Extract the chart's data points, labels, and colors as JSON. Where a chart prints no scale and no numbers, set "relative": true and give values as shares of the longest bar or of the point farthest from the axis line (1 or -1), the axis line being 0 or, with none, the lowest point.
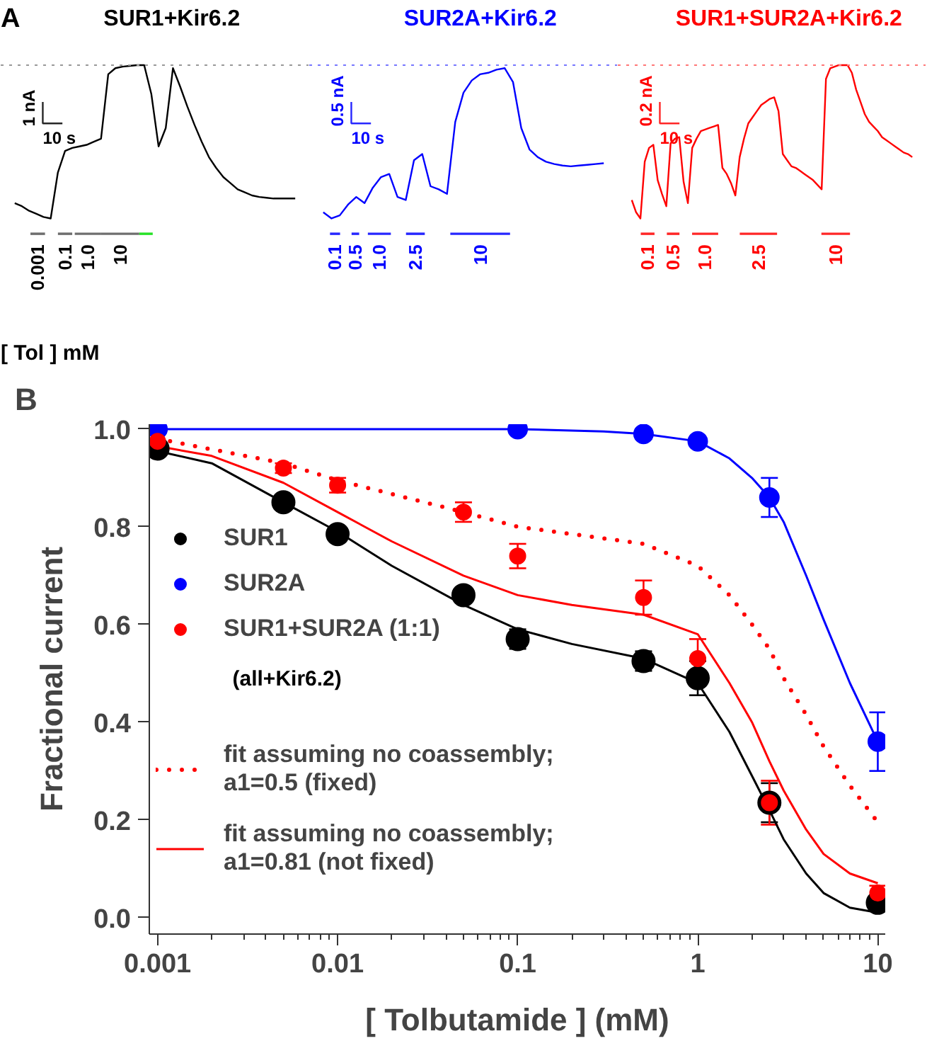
{
  "chart_data": [
    {
      "type": "line",
      "title": "SUR1+Kir6.2",
      "relative": true,
      "tick_labels": false,
      "categories": [
        null,
        null,
        null,
        null,
        null,
        null,
        null,
        null,
        null,
        null,
        null,
        null,
        null,
        null,
        null,
        null,
        null,
        null,
        null,
        null,
        null,
        null,
        null,
        null,
        null,
        null,
        null,
        null,
        null,
        null,
        null,
        null,
        null,
        null,
        null,
        null,
        null,
        null,
        null,
        null
      ],
      "series": [
        {
          "color": "#000000",
          "values": [
            -0.9,
            -0.92,
            -0.95,
            -0.97,
            -0.99,
            -1.0,
            -0.7,
            -0.56,
            -0.54,
            -0.53,
            -0.52,
            -0.5,
            -0.48,
            -0.06,
            -0.02,
            -0.01,
            -0.005,
            0,
            0,
            -0.19,
            -0.53,
            -0.41,
            -0.02,
            -0.14,
            -0.27,
            -0.39,
            -0.5,
            -0.6,
            -0.67,
            -0.73,
            -0.77,
            -0.81,
            -0.83,
            -0.85,
            -0.86,
            -0.865,
            -0.87,
            -0.87,
            -0.87,
            -0.87
          ]
        }
      ],
      "ref_lines": [
        {
          "axis": "y",
          "value": 0,
          "line_style": "dotted",
          "color": "#999999"
        }
      ],
      "annotations": [
        "1 nA",
        "10 s",
        "0.001",
        "0.1",
        "1.0",
        "10",
        "A",
        "[ Tol ] mM"
      ]
    },
    {
      "type": "line",
      "title": "SUR2A+Kir6.2",
      "relative": true,
      "tick_labels": false,
      "categories": [
        null,
        null,
        null,
        null,
        null,
        null,
        null,
        null,
        null,
        null,
        null,
        null,
        null,
        null,
        null,
        null,
        null,
        null,
        null,
        null,
        null,
        null,
        null,
        null,
        null,
        null,
        null,
        null,
        null,
        null,
        null,
        null,
        null,
        null,
        null
      ],
      "series": [
        {
          "color": "#0000ff",
          "values": [
            -0.96,
            -1.0,
            -0.98,
            -0.91,
            -0.86,
            -0.9,
            -0.8,
            -0.73,
            -0.71,
            -0.86,
            -0.88,
            -0.62,
            -0.58,
            -0.79,
            -0.81,
            -0.84,
            -0.37,
            -0.18,
            -0.1,
            -0.06,
            -0.05,
            -0.03,
            -0.02,
            -0.11,
            -0.41,
            -0.55,
            -0.6,
            -0.63,
            -0.645,
            -0.655,
            -0.66,
            -0.655,
            -0.65,
            -0.645,
            -0.64
          ]
        }
      ],
      "ref_lines": [
        {
          "axis": "y",
          "value": 0,
          "line_style": "dotted",
          "color": "#7777ff"
        }
      ],
      "annotations": [
        "0.5 nA",
        "10 s",
        "0.1",
        "0.5",
        "1.0",
        "2.5",
        "10"
      ]
    },
    {
      "type": "line",
      "title": "SUR1+SUR2A+Kir6.2",
      "relative": true,
      "tick_labels": false,
      "categories": [
        null,
        null,
        null,
        null,
        null,
        null,
        null,
        null,
        null,
        null,
        null,
        null,
        null,
        null,
        null,
        null,
        null,
        null,
        null,
        null,
        null,
        null,
        null,
        null,
        null,
        null,
        null,
        null,
        null,
        null,
        null,
        null,
        null,
        null,
        null,
        null,
        null,
        null,
        null,
        null,
        null,
        null,
        null,
        null,
        null,
        null,
        null,
        null,
        null,
        null,
        null,
        null,
        null,
        null,
        null,
        null,
        null,
        null,
        null,
        null,
        null,
        null,
        null,
        null,
        null,
        null
      ],
      "series": [
        {
          "color": "#ff0000",
          "values": [
            -0.88,
            -0.96,
            -1.0,
            -0.63,
            -0.54,
            -0.52,
            -0.75,
            -0.84,
            -0.92,
            -0.51,
            -0.48,
            -0.47,
            -0.76,
            -0.9,
            -0.54,
            -0.48,
            -0.43,
            -0.42,
            -0.41,
            -0.4,
            -0.39,
            -0.67,
            -0.71,
            -0.77,
            -0.85,
            -0.6,
            -0.48,
            -0.38,
            -0.34,
            -0.3,
            -0.26,
            -0.24,
            -0.22,
            -0.21,
            -0.3,
            -0.58,
            -0.62,
            -0.66,
            -0.67,
            -0.69,
            -0.71,
            -0.73,
            -0.75,
            -0.78,
            -0.81,
            -0.09,
            -0.02,
            -0.01,
            0,
            0,
            0,
            -0.05,
            -0.16,
            -0.24,
            -0.32,
            -0.37,
            -0.4,
            -0.43,
            -0.47,
            -0.49,
            -0.51,
            -0.53,
            -0.55,
            -0.57,
            -0.58,
            -0.6
          ]
        }
      ],
      "ref_lines": [
        {
          "axis": "y",
          "value": 0,
          "line_style": "dotted",
          "color": "#ff7777"
        }
      ],
      "annotations": [
        "0.2 nA",
        "10 s",
        "0.1",
        "0.5",
        "1.0",
        "2.5",
        "10"
      ]
    },
    {
      "type": "scatter",
      "xlabel": "[ Tolbutamide ] (mM)",
      "ylabel": "Fractional current",
      "log": "x",
      "legend": "left",
      "xlim": [
        0.0009,
        11
      ],
      "ylim": [
        -0.034,
        1.01
      ],
      "xticks": [
        0.001,
        0.01,
        0.1,
        1,
        10
      ],
      "yticks": [
        {
          "value": 0,
          "label": "0.0"
        },
        0.2,
        0.4,
        0.6,
        0.8,
        {
          "value": 1,
          "label": "1.0"
        }
      ],
      "series": [
        {
          "type": "line",
          "color": "#000000",
          "line_style": "solid",
          "x": [
            0.001,
            0.002,
            0.005,
            0.01,
            0.02,
            0.05,
            0.1,
            0.2,
            0.5,
            1,
            1.5,
            2,
            2.5,
            3,
            4,
            5,
            7,
            10
          ],
          "values": [
            0.955,
            0.93,
            0.85,
            0.79,
            0.72,
            0.64,
            0.59,
            0.56,
            0.53,
            0.48,
            0.38,
            0.29,
            0.22,
            0.16,
            0.09,
            0.05,
            0.02,
            0.01
          ]
        },
        {
          "type": "line",
          "color": "#0000ff",
          "line_style": "solid",
          "x": [
            0.001,
            0.1,
            0.3,
            0.5,
            1,
            1.5,
            2,
            2.5,
            3,
            4,
            5,
            7,
            10
          ],
          "values": [
            1.0,
            1.0,
            0.995,
            0.99,
            0.975,
            0.94,
            0.9,
            0.86,
            0.81,
            0.7,
            0.61,
            0.48,
            0.36
          ]
        },
        {
          "name": "SUR1",
          "color": "#000000",
          "marker": "circle",
          "x": [
            0.001,
            0.005,
            0.01,
            0.05,
            0.1,
            0.5,
            1,
            2.5,
            10
          ],
          "values": [
            0.96,
            0.85,
            0.785,
            0.66,
            0.57,
            0.525,
            0.49,
            0.235,
            0.03
          ],
          "errors": [
            0.01,
            0.01,
            0.015,
            0.015,
            0.02,
            0.02,
            0.035,
            0.04,
            0.01
          ]
        },
        {
          "name": "SUR2A",
          "color": "#0000ff",
          "marker": "circle",
          "x": [
            0.001,
            0.1,
            0.5,
            1,
            2.5,
            10
          ],
          "values": [
            1.0,
            1.0,
            0.99,
            0.975,
            0.86,
            0.36
          ],
          "errors": [
            null,
            null,
            0.01,
            0.01,
            0.04,
            0.06
          ]
        },
        {
          "name": "SUR1+SUR2A (1:1)",
          "color": "#ff0000",
          "marker": "circle",
          "x": [
            0.001,
            0.005,
            0.01,
            0.05,
            0.1,
            0.5,
            1,
            2.5,
            10
          ],
          "values": [
            0.975,
            0.92,
            0.885,
            0.83,
            0.74,
            0.655,
            0.53,
            0.235,
            0.05
          ],
          "errors": [
            0.02,
            0.01,
            0.015,
            0.02,
            0.025,
            0.035,
            0.04,
            0.045,
            0.015
          ]
        },
        {
          "type": "line",
          "name": "fit assuming no coassembly;\na1=0.5 (fixed)",
          "color": "#ff0000",
          "line_style": "dotted",
          "x": [
            0.001,
            0.005,
            0.01,
            0.05,
            0.1,
            0.2,
            0.5,
            1,
            1.5,
            2,
            2.5,
            3,
            4,
            5,
            7,
            10
          ],
          "values": [
            0.98,
            0.93,
            0.895,
            0.83,
            0.8,
            0.785,
            0.765,
            0.72,
            0.66,
            0.6,
            0.55,
            0.49,
            0.415,
            0.35,
            0.27,
            0.195
          ]
        },
        {
          "type": "line",
          "name": "fit assuming no coassembly;\na1=0.81 (not fixed)",
          "color": "#ff0000",
          "line_style": "solid",
          "x": [
            0.001,
            0.002,
            0.005,
            0.01,
            0.02,
            0.05,
            0.1,
            0.2,
            0.5,
            1,
            1.5,
            2,
            2.5,
            3,
            4,
            5,
            7,
            10
          ],
          "values": [
            0.965,
            0.945,
            0.89,
            0.83,
            0.77,
            0.7,
            0.66,
            0.64,
            0.62,
            0.58,
            0.48,
            0.4,
            0.32,
            0.26,
            0.18,
            0.13,
            0.09,
            0.07
          ]
        }
      ],
      "annotations": [
        "B",
        "(all+Kir6.2)"
      ]
    }
  ]
}
